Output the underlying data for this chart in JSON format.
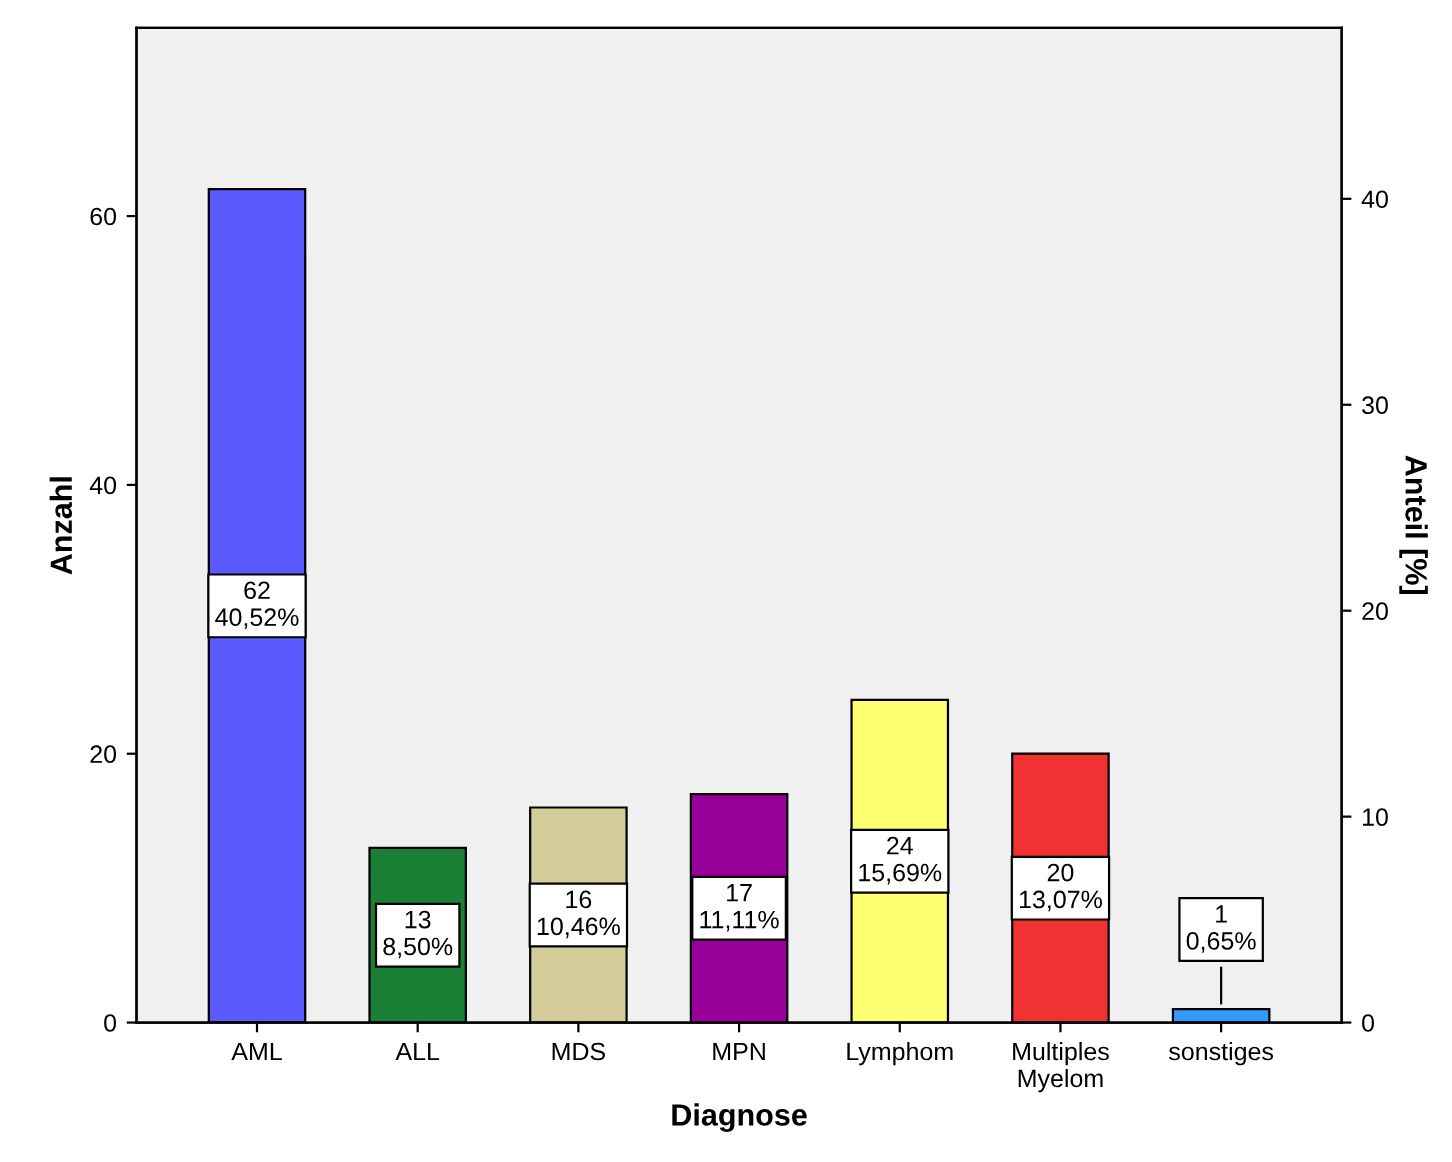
{
  "chart_data": {
    "type": "bar",
    "xlabel": "Diagnose",
    "ylabel": "Anzahl",
    "y2label": "Anteil [%]",
    "categories": [
      "AML",
      "ALL",
      "MDS",
      "MPN",
      "Lymphom",
      "Multiples\nMyelom",
      "sonstiges"
    ],
    "values": [
      62,
      13,
      16,
      17,
      24,
      20,
      1
    ],
    "colors": [
      "#5a5aff",
      "#1a8036",
      "#d4cc98",
      "#990099",
      "#ffff73",
      "#f03232",
      "#3399ff"
    ],
    "value_labels": [
      "62\n40,52%",
      "13\n8,50%",
      "16\n10,46%",
      "17\n11,11%",
      "24\n15,69%",
      "20\n13,07%",
      "1\n0,65%"
    ],
    "ylim": [
      0,
      74
    ],
    "yticks": [
      0,
      20,
      40,
      60
    ],
    "y2lim": [
      0,
      48.3
    ],
    "y2ticks": [
      0,
      10,
      20,
      30,
      40
    ],
    "grid": false,
    "legend": false
  }
}
